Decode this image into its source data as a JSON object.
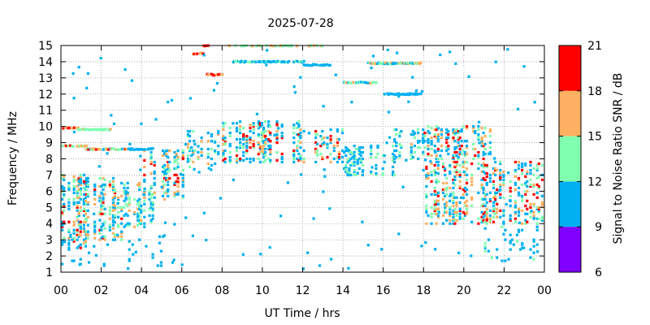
{
  "chart_data": {
    "type": "heatmap",
    "title": "2025-07-28",
    "xlabel": "UT Time / hrs",
    "ylabel": "Frequency / MHz",
    "xlim": [
      0,
      24
    ],
    "ylim": [
      1,
      15
    ],
    "x_ticks": [
      "00",
      "02",
      "04",
      "06",
      "08",
      "10",
      "12",
      "14",
      "16",
      "18",
      "20",
      "22",
      "00"
    ],
    "y_ticks": [
      "1",
      "2",
      "3",
      "4",
      "5",
      "6",
      "7",
      "8",
      "9",
      "10",
      "11",
      "12",
      "13",
      "14",
      "15"
    ],
    "grid": true,
    "colorbar": {
      "label": "Signal to Noise Ratio SNR / dB",
      "ticks": [
        "6",
        "9",
        "12",
        "15",
        "18",
        "21"
      ],
      "bands": [
        {
          "min": 6,
          "max": 9,
          "color": "#8000ff"
        },
        {
          "min": 9,
          "max": 12,
          "color": "#00b0f0"
        },
        {
          "min": 12,
          "max": 15,
          "color": "#80ffb0"
        },
        {
          "min": 15,
          "max": 18,
          "color": "#ffb060"
        },
        {
          "min": 18,
          "max": 21,
          "color": "#ff0000"
        }
      ]
    },
    "activity_regions": [
      {
        "t0": 0.0,
        "t1": 1.2,
        "f0": 2.5,
        "f1": 7.0,
        "density": 0.65,
        "snr": [
          9,
          20
        ]
      },
      {
        "t0": 1.2,
        "t1": 3.0,
        "f0": 3.0,
        "f1": 6.8,
        "density": 0.55,
        "snr": [
          9,
          19
        ]
      },
      {
        "t0": 3.0,
        "t1": 4.6,
        "f0": 3.8,
        "f1": 6.5,
        "density": 0.5,
        "snr": [
          9,
          16
        ]
      },
      {
        "t0": 4.0,
        "t1": 6.0,
        "f0": 5.5,
        "f1": 8.5,
        "density": 0.55,
        "snr": [
          9,
          20
        ]
      },
      {
        "t0": 6.0,
        "t1": 8.0,
        "f0": 7.5,
        "f1": 9.8,
        "density": 0.35,
        "snr": [
          9,
          18
        ]
      },
      {
        "t0": 8.0,
        "t1": 12.0,
        "f0": 7.8,
        "f1": 10.3,
        "density": 0.7,
        "snr": [
          9,
          21
        ]
      },
      {
        "t0": 12.0,
        "t1": 14.0,
        "f0": 7.8,
        "f1": 9.8,
        "density": 0.55,
        "snr": [
          9,
          21
        ]
      },
      {
        "t0": 14.0,
        "t1": 16.5,
        "f0": 7.0,
        "f1": 8.8,
        "density": 0.5,
        "snr": [
          9,
          15
        ]
      },
      {
        "t0": 16.5,
        "t1": 18.0,
        "f0": 8.0,
        "f1": 9.8,
        "density": 0.45,
        "snr": [
          9,
          16
        ]
      },
      {
        "t0": 18.0,
        "t1": 21.3,
        "f0": 8.0,
        "f1": 10.0,
        "density": 0.55,
        "snr": [
          9,
          21
        ]
      },
      {
        "t0": 18.0,
        "t1": 24.0,
        "f0": 4.0,
        "f1": 7.8,
        "density": 0.55,
        "snr": [
          9,
          21
        ]
      },
      {
        "t0": 21.0,
        "t1": 24.0,
        "f0": 1.5,
        "f1": 4.0,
        "density": 0.12,
        "snr": [
          9,
          13
        ]
      },
      {
        "t0": 0.0,
        "t1": 5.0,
        "f0": 1.3,
        "f1": 3.5,
        "density": 0.08,
        "snr": [
          9,
          12
        ]
      }
    ],
    "line_features": [
      {
        "t0": 0.0,
        "t1": 0.8,
        "f": 9.9,
        "snr": [
          15,
          20
        ]
      },
      {
        "t0": 0.8,
        "t1": 2.4,
        "f": 9.8,
        "snr": [
          12,
          16
        ]
      },
      {
        "t0": 0.0,
        "t1": 1.2,
        "f": 8.8,
        "snr": [
          12,
          20
        ]
      },
      {
        "t0": 1.2,
        "t1": 3.2,
        "f": 8.6,
        "snr": [
          9,
          19
        ]
      },
      {
        "t0": 3.2,
        "t1": 4.5,
        "f": 8.6,
        "snr": [
          9,
          12
        ]
      },
      {
        "t0": 6.5,
        "t1": 7.0,
        "f": 14.5,
        "snr": [
          15,
          20
        ]
      },
      {
        "t0": 7.0,
        "t1": 7.5,
        "f": 15.0,
        "snr": [
          15,
          21
        ]
      },
      {
        "t0": 7.2,
        "t1": 8.0,
        "f": 13.2,
        "snr": [
          15,
          21
        ]
      },
      {
        "t0": 8.5,
        "t1": 12.0,
        "f": 14.0,
        "snr": [
          9,
          13
        ]
      },
      {
        "t0": 8.2,
        "t1": 13.0,
        "f": 15.0,
        "snr": [
          12,
          17
        ]
      },
      {
        "t0": 12.0,
        "t1": 13.3,
        "f": 13.8,
        "snr": [
          9,
          12
        ]
      },
      {
        "t0": 14.0,
        "t1": 15.6,
        "f": 12.7,
        "snr": [
          9,
          16
        ]
      },
      {
        "t0": 15.2,
        "t1": 17.8,
        "f": 13.9,
        "snr": [
          9,
          17
        ]
      },
      {
        "t0": 16.0,
        "t1": 17.8,
        "f": 12.0,
        "snr": [
          9,
          12
        ]
      }
    ]
  }
}
